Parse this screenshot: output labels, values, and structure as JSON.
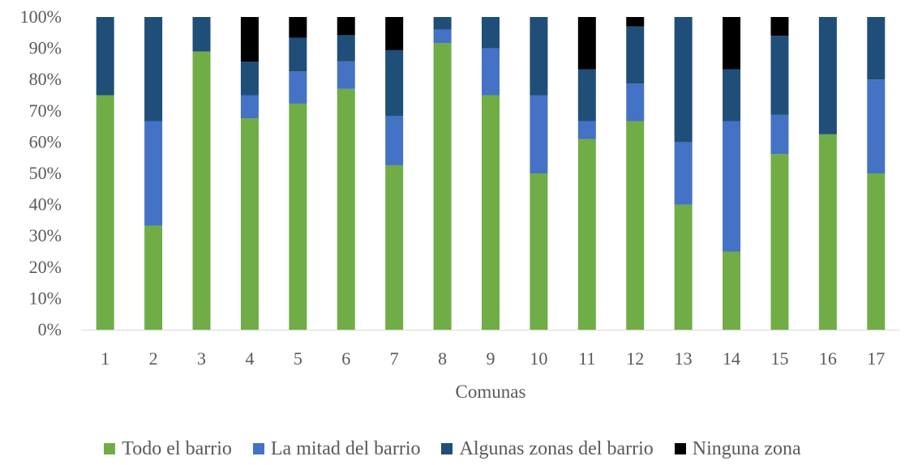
{
  "chart_data": {
    "type": "bar",
    "stacked": true,
    "xlabel": "Comunas",
    "ylabel": "",
    "ylim": [
      0,
      100
    ],
    "yticks": [
      "0%",
      "10%",
      "20%",
      "30%",
      "40%",
      "50%",
      "60%",
      "70%",
      "80%",
      "90%",
      "100%"
    ],
    "categories": [
      "1",
      "2",
      "3",
      "4",
      "5",
      "6",
      "7",
      "8",
      "9",
      "10",
      "11",
      "12",
      "13",
      "14",
      "15",
      "16",
      "17"
    ],
    "series": [
      {
        "name": "Todo el barrio",
        "color": "#70ad47",
        "values": [
          75,
          33.3,
          89,
          67.6,
          72.3,
          77,
          52.6,
          91.7,
          75,
          50,
          61,
          66.7,
          40,
          25,
          56.2,
          62.5,
          50
        ]
      },
      {
        "name": "La mitad del barrio",
        "color": "#4472c4",
        "values": [
          0,
          33.4,
          0,
          7.4,
          10.3,
          8.8,
          15.8,
          4.3,
          15,
          25,
          5.7,
          12,
          20,
          41.7,
          12.5,
          0,
          30
        ]
      },
      {
        "name": "Algunas zonas del barrio",
        "color": "#1f4e79",
        "values": [
          25,
          33.3,
          11,
          10.7,
          10.8,
          8.4,
          21,
          4,
          10,
          25,
          16.6,
          18.3,
          40,
          16.6,
          25.3,
          37.5,
          20
        ]
      },
      {
        "name": "Ninguna zona",
        "color": "#000000",
        "values": [
          0,
          0,
          0,
          14.3,
          6.6,
          5.8,
          10.6,
          0,
          0,
          0,
          16.7,
          3,
          0,
          16.7,
          6,
          0,
          0
        ]
      }
    ],
    "grid": false,
    "legend_position": "bottom"
  }
}
